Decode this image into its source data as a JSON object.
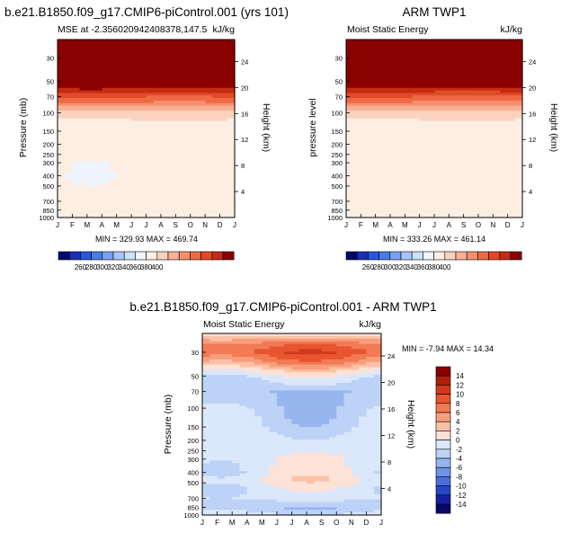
{
  "chart_data": [
    {
      "type": "heatmap",
      "id": "model",
      "title": "b.e21.B1850.f09_g17.CMIP6-piControl.001 (yrs 101)",
      "left_string": "MSE at -2.356020942408378,147.5",
      "right_string": "kJ/kg",
      "ylabel": "Pressure (mb)",
      "ylabel_right": "Height (km)",
      "x_ticks": [
        "J",
        "F",
        "M",
        "A",
        "M",
        "J",
        "J",
        "A",
        "S",
        "O",
        "N",
        "D",
        "J"
      ],
      "y_ticks": [
        30,
        50,
        70,
        100,
        150,
        200,
        250,
        300,
        400,
        500,
        700,
        850,
        1000
      ],
      "y_range_mb": [
        20,
        1000
      ],
      "height_ticks_km": [
        4,
        8,
        12,
        16,
        20,
        24
      ],
      "stats_text": "MIN = 329.93 MAX = 469.74",
      "min": 329.93,
      "max": 469.74,
      "profile": [
        {
          "p": 20,
          "v": 469.74
        },
        {
          "p": 50,
          "v": 420
        },
        {
          "p": 60,
          "v": 397
        },
        {
          "p": 70,
          "v": 381
        },
        {
          "p": 80,
          "v": 369
        },
        {
          "p": 90,
          "v": 355
        },
        {
          "p": 100,
          "v": 345
        },
        {
          "p": 120,
          "v": 339
        },
        {
          "p": 150,
          "v": 336
        },
        {
          "p": 200,
          "v": 335
        },
        {
          "p": 250,
          "v": 334
        },
        {
          "p": 300,
          "v": 332
        },
        {
          "p": 400,
          "v": 331
        },
        {
          "p": 500,
          "v": 331
        },
        {
          "p": 700,
          "v": 331
        },
        {
          "p": 850,
          "v": 335
        },
        {
          "p": 1000,
          "v": 338
        }
      ]
    },
    {
      "type": "heatmap",
      "id": "obs",
      "title": "ARM TWP1",
      "left_string": "Moist Static Energy",
      "right_string": "kJ/kg",
      "ylabel": "pressure level",
      "ylabel_right": "Height (km)",
      "x_ticks": [
        "J",
        "F",
        "M",
        "A",
        "M",
        "J",
        "J",
        "A",
        "S",
        "O",
        "N",
        "D",
        "J"
      ],
      "y_ticks": [
        30,
        50,
        70,
        100,
        150,
        200,
        250,
        300,
        400,
        500,
        700,
        850,
        1000
      ],
      "y_range_mb": [
        20,
        1000
      ],
      "height_ticks_km": [
        4,
        8,
        12,
        16,
        20,
        24
      ],
      "stats_text": "MIN = 333.26 MAX = 461.14",
      "min": 333.26,
      "max": 461.14,
      "profile": [
        {
          "p": 20,
          "v": 461.14
        },
        {
          "p": 50,
          "v": 415
        },
        {
          "p": 60,
          "v": 395
        },
        {
          "p": 70,
          "v": 380
        },
        {
          "p": 80,
          "v": 368
        },
        {
          "p": 90,
          "v": 354
        },
        {
          "p": 100,
          "v": 345
        },
        {
          "p": 120,
          "v": 339
        },
        {
          "p": 150,
          "v": 336
        },
        {
          "p": 200,
          "v": 335
        },
        {
          "p": 250,
          "v": 334
        },
        {
          "p": 300,
          "v": 333
        },
        {
          "p": 400,
          "v": 334
        },
        {
          "p": 500,
          "v": 334
        },
        {
          "p": 700,
          "v": 334
        },
        {
          "p": 850,
          "v": 336
        },
        {
          "p": 1000,
          "v": 338
        }
      ]
    },
    {
      "type": "heatmap",
      "id": "diff",
      "title": "b.e21.B1850.f09_g17.CMIP6-piControl.001 - ARM TWP1",
      "left_string": "Moist Static Energy",
      "right_string": "kJ/kg",
      "ylabel": "Pressure (mb)",
      "ylabel_right": "Height (km)",
      "x_ticks": [
        "J",
        "F",
        "M",
        "A",
        "M",
        "J",
        "J",
        "A",
        "S",
        "O",
        "N",
        "D",
        "J"
      ],
      "y_ticks": [
        30,
        50,
        70,
        100,
        150,
        200,
        250,
        300,
        400,
        500,
        700,
        850,
        1000
      ],
      "y_range_mb": [
        20,
        1000
      ],
      "height_ticks_km": [
        4,
        8,
        12,
        16,
        20,
        24
      ],
      "stats_text": "MIN = -7.94 MAX =  14.34",
      "min": -7.94,
      "max": 14.34,
      "profile": [
        {
          "p": 20,
          "v": 1
        },
        {
          "p": 25,
          "v": 7
        },
        {
          "p": 30,
          "v": 9
        },
        {
          "p": 38,
          "v": 5
        },
        {
          "p": 45,
          "v": 1
        },
        {
          "p": 52,
          "v": -1.5
        },
        {
          "p": 70,
          "v": -4
        },
        {
          "p": 100,
          "v": -3
        },
        {
          "p": 150,
          "v": -2
        },
        {
          "p": 200,
          "v": -1
        },
        {
          "p": 300,
          "v": -0.5
        },
        {
          "p": 400,
          "v": -0.5
        },
        {
          "p": 470,
          "v": 0.5
        },
        {
          "p": 560,
          "v": -1
        },
        {
          "p": 700,
          "v": -1.5
        },
        {
          "p": 850,
          "v": -4
        },
        {
          "p": 1000,
          "v": -1
        }
      ]
    }
  ],
  "colorbars": [
    {
      "id": "top-left",
      "labels": [
        "260",
        "280",
        "300",
        "320",
        "340",
        "360",
        "380",
        "400"
      ],
      "colors": [
        "#08086b",
        "#1a2fb5",
        "#2a55dd",
        "#4a79e8",
        "#7aa0f0",
        "#a9c4f6",
        "#cddff9",
        "#eef5ff",
        "#fdeee3",
        "#fbd2bd",
        "#f8b196",
        "#f48f6c",
        "#ee6a45",
        "#e14a27",
        "#c42b12",
        "#8b0000"
      ]
    },
    {
      "id": "top-right",
      "labels": [
        "260",
        "280",
        "300",
        "320",
        "340",
        "360",
        "380",
        "400"
      ],
      "colors": [
        "#08086b",
        "#1a2fb5",
        "#2a55dd",
        "#4a79e8",
        "#7aa0f0",
        "#a9c4f6",
        "#cddff9",
        "#eef5ff",
        "#fdeee3",
        "#fbd2bd",
        "#f8b196",
        "#f48f6c",
        "#ee6a45",
        "#e14a27",
        "#c42b12",
        "#8b0000"
      ]
    },
    {
      "id": "diff",
      "labels": [
        "14",
        "12",
        "10",
        "8",
        "6",
        "4",
        "2",
        "0",
        "-2",
        "-4",
        "-6",
        "-8",
        "-10",
        "-12",
        "-14"
      ],
      "colors": [
        "#8b0000",
        "#b11e0a",
        "#d03a1c",
        "#e8552f",
        "#f27a55",
        "#f79e7d",
        "#fbc1a7",
        "#fee2d6",
        "#dbe7fb",
        "#bcd2f6",
        "#97b6ef",
        "#6f93e6",
        "#4a6fdc",
        "#2846c7",
        "#1222a3",
        "#08086b"
      ]
    }
  ]
}
